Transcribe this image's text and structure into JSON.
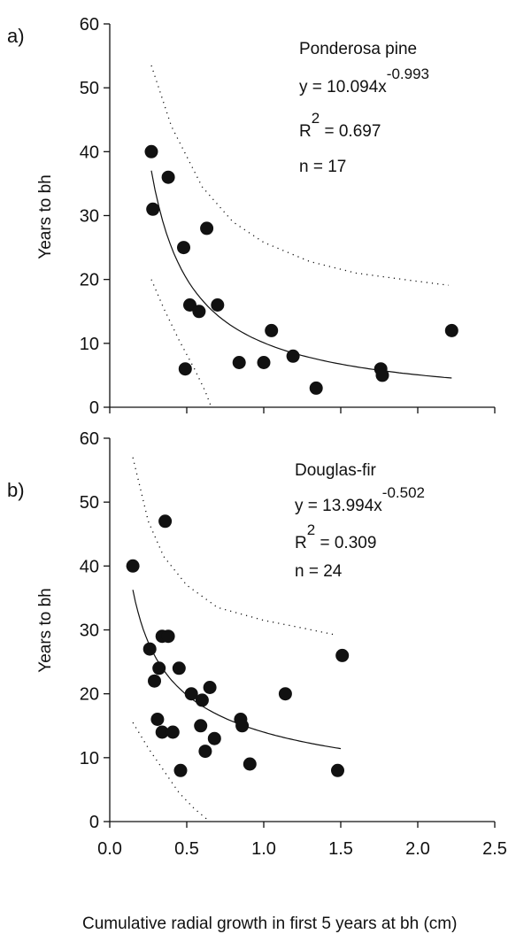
{
  "chart_data": [
    {
      "type": "scatter",
      "panel_label": "a)",
      "annotations": {
        "species": "Ponderosa pine",
        "eq_prefix": "y = 10.094x",
        "eq_exp": "-0.993",
        "r2_prefix": "R",
        "r2_sup": "2",
        "r2_value": " = 0.697",
        "n": "n = 17"
      },
      "ylabel": "Years to bh",
      "ylim": [
        0,
        60
      ],
      "yticks": [
        "0",
        "10",
        "20",
        "30",
        "40",
        "50",
        "60"
      ],
      "xlim": [
        0,
        2.5
      ],
      "grid": false,
      "points": [
        {
          "x": 0.27,
          "y": 40
        },
        {
          "x": 0.28,
          "y": 31
        },
        {
          "x": 0.38,
          "y": 36
        },
        {
          "x": 0.48,
          "y": 25
        },
        {
          "x": 0.63,
          "y": 28
        },
        {
          "x": 0.52,
          "y": 16
        },
        {
          "x": 0.58,
          "y": 15
        },
        {
          "x": 0.7,
          "y": 16
        },
        {
          "x": 0.49,
          "y": 6
        },
        {
          "x": 0.84,
          "y": 7
        },
        {
          "x": 1.0,
          "y": 7
        },
        {
          "x": 1.05,
          "y": 12
        },
        {
          "x": 1.19,
          "y": 8
        },
        {
          "x": 1.34,
          "y": 3
        },
        {
          "x": 1.76,
          "y": 6
        },
        {
          "x": 1.77,
          "y": 5
        },
        {
          "x": 2.22,
          "y": 12
        }
      ],
      "fit": {
        "a": 10.094,
        "b": -0.993,
        "x_range": [
          0.27,
          2.22
        ]
      },
      "upper_band": [
        [
          0.27,
          53.5
        ],
        [
          0.4,
          44
        ],
        [
          0.6,
          34.5
        ],
        [
          0.8,
          29
        ],
        [
          1.0,
          25.8
        ],
        [
          1.3,
          22.8
        ],
        [
          1.6,
          21
        ],
        [
          2.0,
          19.7
        ],
        [
          2.2,
          19.1
        ]
      ],
      "lower_band": [
        [
          0.27,
          20
        ],
        [
          0.35,
          15.5
        ],
        [
          0.45,
          10.5
        ],
        [
          0.55,
          6
        ],
        [
          0.62,
          2.5
        ],
        [
          0.66,
          0
        ]
      ]
    },
    {
      "type": "scatter",
      "panel_label": "b)",
      "annotations": {
        "species": "Douglas-fir",
        "eq_prefix": "y = 13.994x",
        "eq_exp": "-0.502",
        "r2_prefix": "R",
        "r2_sup": "2",
        "r2_value": " = 0.309",
        "n": "n = 24"
      },
      "ylabel": "Years to bh",
      "xlabel": "Cumulative radial growth in first 5 years at bh (cm)",
      "ylim": [
        0,
        60
      ],
      "yticks": [
        "0",
        "10",
        "20",
        "30",
        "40",
        "50",
        "60"
      ],
      "xlim": [
        0,
        2.5
      ],
      "xticks": [
        "0.0",
        "0.5",
        "1.0",
        "1.5",
        "2.0",
        "2.5"
      ],
      "grid": false,
      "points": [
        {
          "x": 0.15,
          "y": 40
        },
        {
          "x": 0.36,
          "y": 47
        },
        {
          "x": 0.26,
          "y": 27
        },
        {
          "x": 0.34,
          "y": 29
        },
        {
          "x": 0.38,
          "y": 29
        },
        {
          "x": 0.32,
          "y": 24
        },
        {
          "x": 0.45,
          "y": 24
        },
        {
          "x": 0.29,
          "y": 22
        },
        {
          "x": 0.53,
          "y": 20
        },
        {
          "x": 0.65,
          "y": 21
        },
        {
          "x": 0.6,
          "y": 19
        },
        {
          "x": 0.31,
          "y": 16
        },
        {
          "x": 0.34,
          "y": 14
        },
        {
          "x": 0.41,
          "y": 14
        },
        {
          "x": 0.59,
          "y": 15
        },
        {
          "x": 0.62,
          "y": 11
        },
        {
          "x": 0.68,
          "y": 13
        },
        {
          "x": 0.46,
          "y": 8
        },
        {
          "x": 0.85,
          "y": 16
        },
        {
          "x": 0.86,
          "y": 15
        },
        {
          "x": 0.91,
          "y": 9
        },
        {
          "x": 1.14,
          "y": 20
        },
        {
          "x": 1.48,
          "y": 8
        },
        {
          "x": 1.51,
          "y": 26
        }
      ],
      "fit": {
        "a": 13.994,
        "b": -0.502,
        "x_range": [
          0.15,
          1.5
        ]
      },
      "upper_band": [
        [
          0.15,
          57
        ],
        [
          0.25,
          47
        ],
        [
          0.35,
          41.5
        ],
        [
          0.5,
          37
        ],
        [
          0.7,
          33.5
        ],
        [
          1.0,
          31.5
        ],
        [
          1.25,
          30.3
        ],
        [
          1.45,
          29.3
        ]
      ],
      "lower_band": [
        [
          0.15,
          15.5
        ],
        [
          0.25,
          11.5
        ],
        [
          0.35,
          8
        ],
        [
          0.45,
          4.5
        ],
        [
          0.55,
          2
        ],
        [
          0.65,
          0
        ]
      ]
    }
  ]
}
